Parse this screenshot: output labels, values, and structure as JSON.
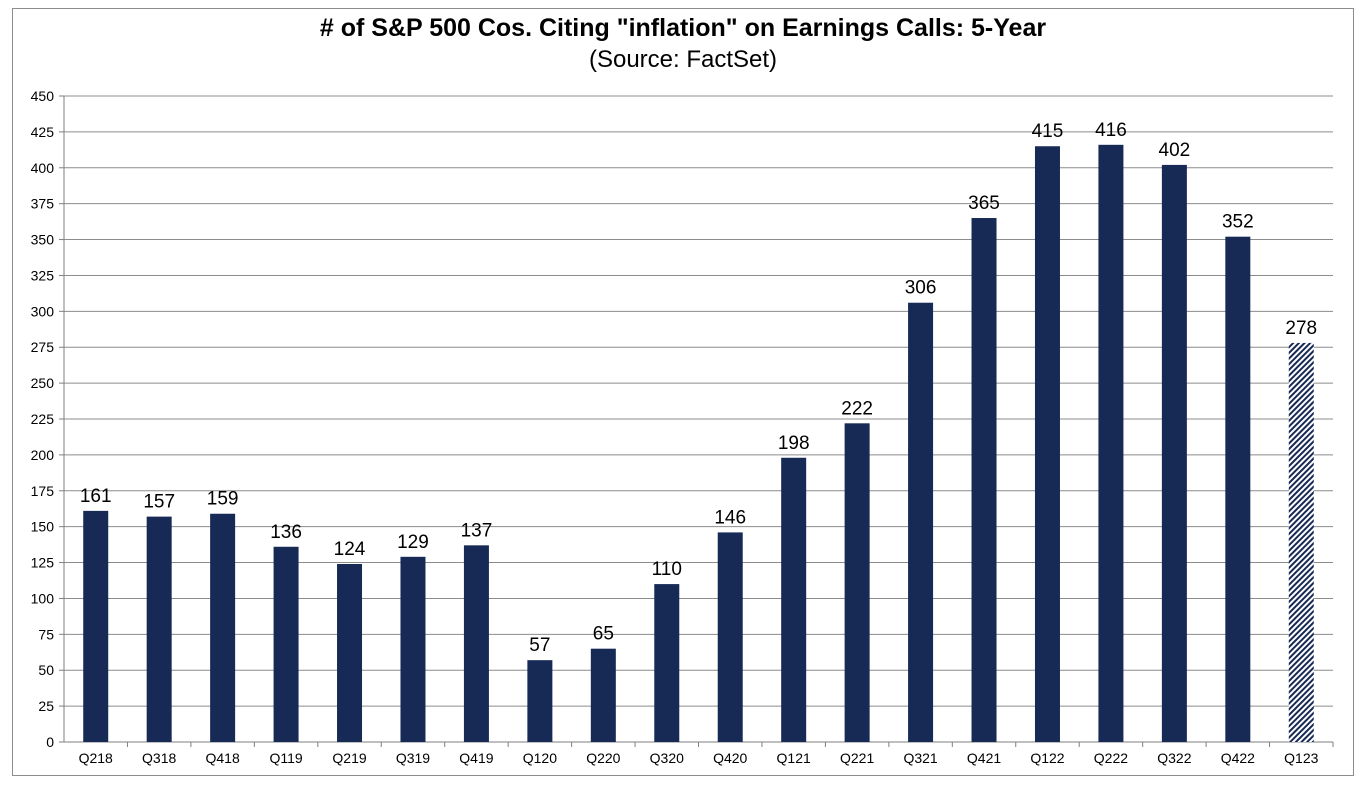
{
  "chart_data": {
    "type": "bar",
    "title": "# of S&P 500 Cos. Citing \"inflation\" on Earnings Calls: 5-Year",
    "subtitle": "(Source: FactSet)",
    "categories": [
      "Q218",
      "Q318",
      "Q418",
      "Q119",
      "Q219",
      "Q319",
      "Q419",
      "Q120",
      "Q220",
      "Q320",
      "Q420",
      "Q121",
      "Q221",
      "Q321",
      "Q421",
      "Q122",
      "Q222",
      "Q322",
      "Q422",
      "Q123"
    ],
    "values": [
      161,
      157,
      159,
      136,
      124,
      129,
      137,
      57,
      65,
      110,
      146,
      198,
      222,
      306,
      365,
      415,
      416,
      402,
      352,
      278
    ],
    "data_labels": [
      "161",
      "157",
      "159",
      "136",
      "124",
      "129",
      "137",
      "57",
      "65",
      "110",
      "146",
      "198",
      "222",
      "306",
      "365",
      "415",
      "416",
      "402",
      "352",
      "278"
    ],
    "hatched_categories": [
      "Q123"
    ],
    "ylim": [
      0,
      450
    ],
    "yticks": [
      "0",
      "25",
      "50",
      "75",
      "100",
      "125",
      "150",
      "175",
      "200",
      "225",
      "250",
      "275",
      "300",
      "325",
      "350",
      "375",
      "400",
      "425",
      "450"
    ],
    "xlabel": "",
    "ylabel": "",
    "grid": true,
    "legend": "none",
    "colors": {
      "bar": "#172a55",
      "hatch": "#172a55",
      "grid": "#8c8c8c",
      "axis": "#7f7f7f"
    }
  }
}
